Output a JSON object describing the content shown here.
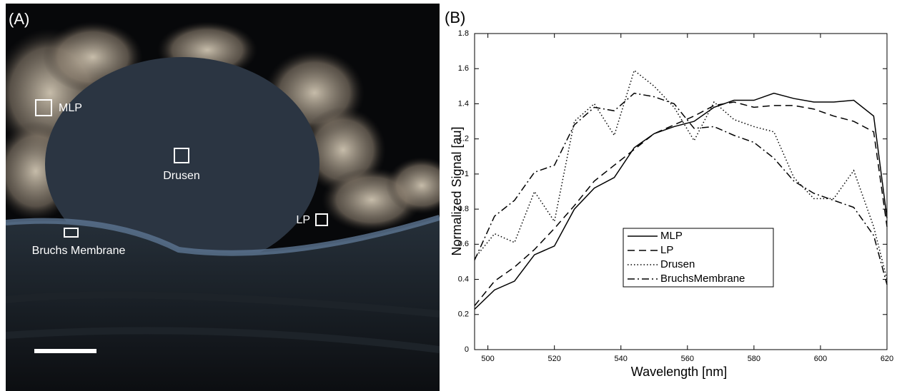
{
  "panel_a": {
    "label": "(A)",
    "regions": [
      "MLP",
      "Drusen",
      "LP",
      "Bruchs Membrane"
    ]
  },
  "chart_data": {
    "type": "line",
    "panel_label": "(B)",
    "x_label": "Wavelength [nm]",
    "y_label": "Normalized Signal [au]",
    "x": [
      496,
      502,
      508,
      514,
      520,
      526,
      532,
      538,
      544,
      550,
      556,
      562,
      568,
      574,
      580,
      586,
      592,
      598,
      604,
      610,
      616,
      620
    ],
    "series": [
      {
        "name": "MLP",
        "color": "#000000",
        "dash": "solid",
        "values": [
          0.23,
          0.34,
          0.39,
          0.54,
          0.59,
          0.8,
          0.92,
          0.98,
          1.15,
          1.23,
          1.27,
          1.3,
          1.38,
          1.42,
          1.42,
          1.46,
          1.43,
          1.41,
          1.41,
          1.42,
          1.33,
          0.75
        ]
      },
      {
        "name": "LP",
        "color": "#000000",
        "dash": "dashed",
        "values": [
          0.25,
          0.39,
          0.47,
          0.57,
          0.69,
          0.82,
          0.96,
          1.05,
          1.14,
          1.23,
          1.28,
          1.33,
          1.39,
          1.41,
          1.38,
          1.39,
          1.39,
          1.37,
          1.33,
          1.3,
          1.24,
          0.7
        ]
      },
      {
        "name": "Drusen",
        "color": "#000000",
        "dash": "dotted",
        "values": [
          0.52,
          0.66,
          0.61,
          0.9,
          0.73,
          1.3,
          1.4,
          1.22,
          1.59,
          1.5,
          1.38,
          1.19,
          1.41,
          1.31,
          1.27,
          1.24,
          0.98,
          0.86,
          0.86,
          1.02,
          0.7,
          0.4
        ]
      },
      {
        "name": "BruchsMembrane",
        "color": "#000000",
        "dash": "dashdot",
        "values": [
          0.51,
          0.76,
          0.85,
          1.01,
          1.05,
          1.28,
          1.38,
          1.36,
          1.46,
          1.44,
          1.4,
          1.26,
          1.27,
          1.22,
          1.18,
          1.09,
          0.96,
          0.89,
          0.85,
          0.81,
          0.65,
          0.37
        ]
      }
    ],
    "xlim": [
      496,
      620
    ],
    "xticks": [
      500,
      520,
      540,
      560,
      580,
      600,
      620
    ],
    "ylim": [
      0,
      1.8
    ],
    "yticks": [
      0,
      0.2,
      0.4,
      0.6,
      0.8,
      1,
      1.2,
      1.4,
      1.6,
      1.8
    ],
    "grid": false,
    "legend": "center"
  }
}
